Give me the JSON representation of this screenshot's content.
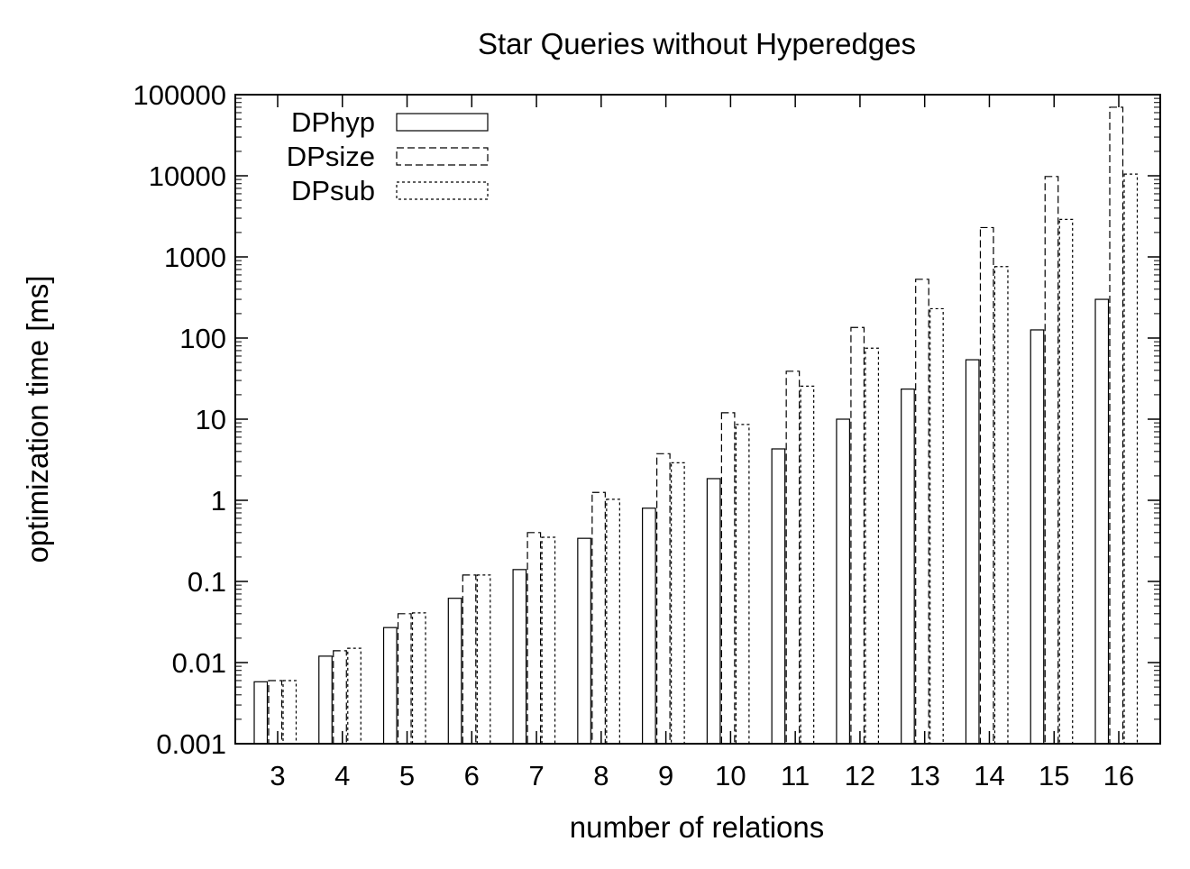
{
  "chart_data": {
    "type": "bar",
    "title": "Star Queries without Hyperedges",
    "xlabel": "number of relations",
    "ylabel": "optimization time [ms]",
    "yscale": "log",
    "ylim": [
      0.001,
      100000
    ],
    "yticks": [
      "0.001",
      "0.01",
      "0.1",
      "1",
      "10",
      "100",
      "1000",
      "10000",
      "100000"
    ],
    "categories": [
      "3",
      "4",
      "5",
      "6",
      "7",
      "8",
      "9",
      "10",
      "11",
      "12",
      "13",
      "14",
      "15",
      "16"
    ],
    "legend_position": "top-left",
    "grid": false,
    "series": [
      {
        "name": "DPhyp",
        "style": "solid",
        "values": [
          0.0058,
          0.012,
          0.027,
          0.062,
          0.14,
          0.34,
          0.8,
          1.85,
          4.3,
          10,
          23.5,
          54,
          126,
          300
        ]
      },
      {
        "name": "DPsize",
        "style": "long-dash",
        "values": [
          0.006,
          0.014,
          0.04,
          0.12,
          0.4,
          1.25,
          3.75,
          12,
          39,
          135,
          530,
          2300,
          9800,
          70000
        ]
      },
      {
        "name": "DPsub",
        "style": "short-dash",
        "values": [
          0.006,
          0.015,
          0.041,
          0.12,
          0.35,
          1.03,
          2.9,
          8.6,
          25.5,
          75,
          230,
          760,
          2900,
          10500
        ]
      }
    ]
  }
}
